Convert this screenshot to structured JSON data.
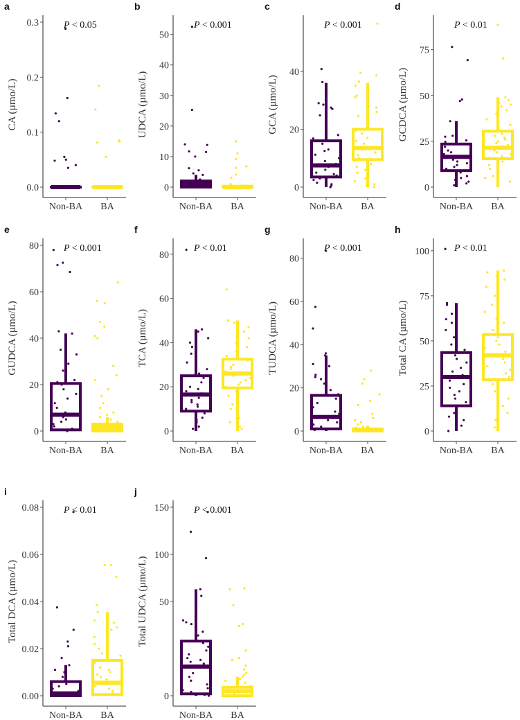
{
  "colors": {
    "Non-BA": "#440154",
    "BA": "#fde725",
    "axis": "#555555"
  },
  "chart_data": [
    {
      "type": "box",
      "panel": "a",
      "ylabel": "CA (µmo/L)",
      "pvalue": "< 0.05",
      "categories": [
        "Non-BA",
        "BA"
      ],
      "ylim": [
        0,
        0.3
      ],
      "yticks": [
        "0.0",
        "0.1",
        "0.2",
        "0.3"
      ],
      "ytick_values": [
        0,
        0.1,
        0.2,
        0.3
      ],
      "groups": [
        {
          "name": "Non-BA",
          "whisker_low": 0,
          "q1": 0,
          "median": 0,
          "q3": 0,
          "whisker_high": 0,
          "points": [
            0.288,
            0.162,
            0.134,
            0.12,
            0.055,
            0.05,
            0.048,
            0.04,
            0.035,
            0,
            0,
            0,
            0,
            0,
            0,
            0,
            0,
            0,
            0,
            0
          ]
        },
        {
          "name": "BA",
          "whisker_low": 0,
          "q1": 0,
          "median": 0,
          "q3": 0,
          "whisker_high": 0,
          "points": [
            0.184,
            0.141,
            0.085,
            0.083,
            0.081,
            0.055,
            0,
            0,
            0,
            0,
            0,
            0,
            0,
            0,
            0,
            0,
            0,
            0,
            0,
            0
          ]
        }
      ]
    },
    {
      "type": "box",
      "panel": "b",
      "ylabel": "UDCA (µmo/L)",
      "pvalue": "< 0.001",
      "categories": [
        "Non-BA",
        "BA"
      ],
      "ylim": [
        0,
        54
      ],
      "yticks": [
        "0",
        "10",
        "20",
        "30",
        "40",
        "50"
      ],
      "ytick_values": [
        0,
        10,
        20,
        30,
        40,
        50
      ],
      "groups": [
        {
          "name": "Non-BA",
          "whisker_low": 0,
          "q1": 0,
          "median": 1,
          "q3": 2,
          "whisker_high": 4,
          "points": [
            52.5,
            25.3,
            14,
            13.8,
            11.7,
            11.5,
            10,
            6.2,
            5.5,
            4.5,
            4,
            2.5,
            1.5,
            1,
            0.5,
            0,
            0,
            0,
            0,
            0,
            0,
            0
          ]
        },
        {
          "name": "BA",
          "whisker_low": 0,
          "q1": 0,
          "median": 0,
          "q3": 0.3,
          "whisker_high": 0.5,
          "points": [
            15,
            11,
            9.2,
            6.8,
            6.3,
            4.1,
            3,
            1,
            0.5,
            0,
            0,
            0,
            0,
            0,
            0,
            0,
            0,
            0,
            0,
            0
          ]
        }
      ]
    },
    {
      "type": "box",
      "panel": "c",
      "ylabel": "GCA (µmo/L)",
      "pvalue": "< 0.001",
      "categories": [
        "Non-BA",
        "BA"
      ],
      "ylim": [
        0,
        57
      ],
      "yticks": [
        "0",
        "20",
        "40"
      ],
      "ytick_values": [
        0,
        20,
        40
      ],
      "groups": [
        {
          "name": "Non-BA",
          "whisker_low": 0,
          "q1": 3.5,
          "median": 7.5,
          "q3": 16,
          "whisker_high": 36,
          "points": [
            40.8,
            36.3,
            29,
            28.5,
            27.5,
            27,
            24.8,
            18,
            16.8,
            15,
            13,
            12.5,
            11.2,
            10,
            9,
            8,
            7,
            6,
            5,
            4.5,
            4,
            3,
            2.5,
            1.5,
            1,
            0.5,
            0
          ]
        },
        {
          "name": "BA",
          "whisker_low": 0,
          "q1": 9.5,
          "median": 13.5,
          "q3": 20,
          "whisker_high": 36,
          "points": [
            56.5,
            39.5,
            38.6,
            36.5,
            35,
            31.6,
            31,
            28,
            27.5,
            26,
            24.5,
            21,
            19.5,
            18.5,
            17,
            16,
            15,
            14,
            13,
            12,
            11,
            10,
            9,
            8,
            7,
            6,
            5,
            4,
            3,
            2,
            1,
            0.5,
            0
          ]
        }
      ]
    },
    {
      "type": "box",
      "panel": "d",
      "ylabel": "GCDCA (µmo/L)",
      "pvalue": "< 0.01",
      "categories": [
        "Non-BA",
        "BA"
      ],
      "ylim": [
        0,
        90
      ],
      "yticks": [
        "0",
        "25",
        "50",
        "75"
      ],
      "ytick_values": [
        0,
        25,
        50,
        75
      ],
      "groups": [
        {
          "name": "Non-BA",
          "whisker_low": 0,
          "q1": 9,
          "median": 16.5,
          "q3": 23.5,
          "whisker_high": 36,
          "points": [
            76.5,
            69.3,
            47.8,
            47,
            36,
            28,
            27.5,
            25.5,
            24.7,
            22,
            20,
            19,
            18,
            17,
            16,
            15,
            14,
            13,
            12,
            11,
            10,
            9,
            8,
            7,
            6,
            5,
            4,
            3,
            2,
            1
          ]
        },
        {
          "name": "BA",
          "whisker_low": 0,
          "q1": 15.5,
          "median": 21.5,
          "q3": 30.5,
          "whisker_high": 49,
          "points": [
            88.5,
            70.3,
            49,
            47.5,
            46,
            45,
            44,
            42,
            40,
            37,
            34,
            31,
            29,
            28,
            27,
            26,
            25,
            24,
            23,
            22,
            21,
            20,
            19,
            18,
            17,
            16,
            14,
            12,
            10,
            8,
            6,
            5,
            3,
            1
          ]
        }
      ]
    },
    {
      "type": "box",
      "panel": "e",
      "ylabel": "GUDCA (µmo/L)",
      "pvalue": "< 0.001",
      "categories": [
        "Non-BA",
        "BA"
      ],
      "ylim": [
        0,
        80
      ],
      "yticks": [
        "0",
        "20",
        "40",
        "60",
        "80"
      ],
      "ytick_values": [
        0,
        20,
        40,
        60,
        80
      ],
      "groups": [
        {
          "name": "Non-BA",
          "whisker_low": 0,
          "q1": 0.5,
          "median": 7,
          "q3": 20.5,
          "whisker_high": 42,
          "points": [
            78,
            72.5,
            71.5,
            68.5,
            43,
            42,
            35,
            33,
            29,
            26,
            22,
            21,
            20,
            18,
            16,
            14,
            12,
            10,
            8,
            7,
            6,
            5,
            4,
            3,
            2,
            1,
            0.5,
            0
          ]
        },
        {
          "name": "BA",
          "whisker_low": 0,
          "q1": 0,
          "median": 1.5,
          "q3": 3,
          "whisker_high": 6,
          "points": [
            64,
            56,
            55,
            47,
            45,
            41,
            40,
            28,
            24,
            22,
            18,
            15,
            12,
            10,
            8,
            7,
            6,
            5,
            4,
            3,
            2,
            1,
            0.5,
            0,
            0,
            0
          ]
        }
      ]
    },
    {
      "type": "box",
      "panel": "f",
      "ylabel": "TCA (µmo/L)",
      "pvalue": "< 0.01",
      "categories": [
        "Non-BA",
        "BA"
      ],
      "ylim": [
        0,
        84
      ],
      "yticks": [
        "0",
        "20",
        "40",
        "60",
        "80"
      ],
      "ytick_values": [
        0,
        20,
        40,
        60,
        80
      ],
      "groups": [
        {
          "name": "Non-BA",
          "whisker_low": 0,
          "q1": 9,
          "median": 16.5,
          "q3": 25,
          "whisker_high": 46,
          "points": [
            82,
            46,
            45,
            42,
            40,
            38,
            35,
            31,
            28,
            26,
            24,
            22,
            20,
            19,
            18,
            17,
            16,
            15,
            14,
            13,
            12,
            11,
            10,
            9,
            8,
            6,
            5,
            4,
            2,
            1
          ]
        },
        {
          "name": "BA",
          "whisker_low": 0,
          "q1": 19.5,
          "median": 26,
          "q3": 32.5,
          "whisker_high": 50,
          "points": [
            64,
            50,
            49,
            47,
            45,
            42,
            40,
            38,
            36,
            34,
            32,
            30,
            29,
            28,
            27,
            26,
            25,
            24,
            23,
            22,
            21,
            20,
            18,
            16,
            14,
            12,
            10,
            8,
            6,
            4,
            2,
            1
          ]
        }
      ]
    },
    {
      "type": "box",
      "panel": "g",
      "ylabel": "TUDCA (µmo/L)",
      "pvalue": "< 0.001",
      "categories": [
        "Non-BA",
        "BA"
      ],
      "ylim": [
        0,
        86
      ],
      "yticks": [
        "0",
        "20",
        "40",
        "60",
        "80"
      ],
      "ytick_values": [
        0,
        20,
        40,
        60,
        80
      ],
      "groups": [
        {
          "name": "Non-BA",
          "whisker_low": 0,
          "q1": 1,
          "median": 6.5,
          "q3": 16.5,
          "whisker_high": 35,
          "points": [
            83.5,
            57.5,
            47.5,
            36,
            35,
            31,
            30,
            26,
            25,
            24,
            22,
            19,
            17,
            15,
            13,
            11,
            9,
            8,
            7,
            6,
            5,
            4,
            3,
            2,
            1,
            0.5
          ]
        },
        {
          "name": "BA",
          "whisker_low": 0,
          "q1": 0,
          "median": 0.5,
          "q3": 1,
          "whisker_high": 2.5,
          "points": [
            28,
            24,
            22,
            17,
            14,
            12,
            8,
            6,
            5,
            4,
            3,
            2,
            1.5,
            1,
            0.5,
            0,
            0,
            0,
            0,
            0
          ]
        }
      ]
    },
    {
      "type": "box",
      "panel": "h",
      "ylabel": "Total  CA (µmo/L)",
      "pvalue": "< 0.01",
      "categories": [
        "Non-BA",
        "BA"
      ],
      "ylim": [
        0,
        103
      ],
      "yticks": [
        "0",
        "25",
        "50",
        "75",
        "100"
      ],
      "ytick_values": [
        0,
        25,
        50,
        75,
        100
      ],
      "groups": [
        {
          "name": "Non-BA",
          "whisker_low": 0,
          "q1": 14,
          "median": 30,
          "q3": 43.5,
          "whisker_high": 71,
          "points": [
            101,
            71,
            70,
            65,
            62,
            60,
            56,
            52,
            48,
            45,
            42,
            40,
            38,
            35,
            33,
            31,
            30,
            28,
            26,
            24,
            22,
            20,
            18,
            16,
            14,
            12,
            10,
            8,
            6,
            3,
            0
          ]
        },
        {
          "name": "BA",
          "whisker_low": 0,
          "q1": 28.5,
          "median": 42,
          "q3": 53.5,
          "whisker_high": 89,
          "points": [
            89,
            88,
            86,
            84,
            80,
            75,
            70,
            66,
            62,
            60,
            56,
            54,
            52,
            50,
            48,
            46,
            44,
            42,
            40,
            38,
            36,
            34,
            32,
            30,
            28,
            26,
            22,
            18,
            14,
            10,
            6,
            2
          ]
        }
      ]
    },
    {
      "type": "box",
      "panel": "i",
      "ylabel": "Total  DCA (µmo/L)",
      "pvalue": "< 0.01",
      "categories": [
        "Non-BA",
        "BA"
      ],
      "ylim": [
        0,
        0.08
      ],
      "yticks": [
        "0.00",
        "0.02",
        "0.04",
        "0.06",
        "0.08"
      ],
      "ytick_values": [
        0,
        0.02,
        0.04,
        0.06,
        0.08
      ],
      "groups": [
        {
          "name": "Non-BA",
          "whisker_low": 0,
          "q1": 0,
          "median": 0.001,
          "q3": 0.006,
          "whisker_high": 0.013,
          "points": [
            0.078,
            0.0375,
            0.028,
            0.023,
            0.021,
            0.016,
            0.013,
            0.011,
            0.01,
            0.008,
            0.006,
            0.005,
            0.004,
            0.003,
            0.002,
            0.001,
            0,
            0,
            0,
            0,
            0
          ]
        },
        {
          "name": "BA",
          "whisker_low": 0,
          "q1": 0.0005,
          "median": 0.0055,
          "q3": 0.015,
          "whisker_high": 0.0355,
          "points": [
            0.0555,
            0.0555,
            0.0505,
            0.0385,
            0.0355,
            0.032,
            0.031,
            0.029,
            0.028,
            0.025,
            0.022,
            0.02,
            0.018,
            0.017,
            0.015,
            0.014,
            0.012,
            0.011,
            0.01,
            0.009,
            0.008,
            0.007,
            0.006,
            0.005,
            0.004,
            0.003,
            0.002,
            0.001
          ]
        }
      ]
    },
    {
      "type": "box",
      "panel": "j",
      "ylabel": "Total  UDCA (µmo/L)",
      "pvalue": "< 0.001",
      "categories": [
        "Non-BA",
        "BA"
      ],
      "ylim": [
        0,
        150
      ],
      "yscale": "piecewise (0–50 expanded)",
      "yticks": [
        "0",
        "50",
        "100",
        "150"
      ],
      "ytick_values": [
        0,
        50,
        100,
        150
      ],
      "groups": [
        {
          "name": "Non-BA",
          "whisker_low": 0,
          "q1": 1,
          "median": 15.5,
          "q3": 29,
          "whisker_high": 63,
          "points": [
            145,
            124,
            96,
            63,
            56,
            40,
            39,
            38,
            37,
            34,
            32,
            28,
            26,
            24,
            22,
            20,
            19,
            18,
            17,
            15,
            12,
            10,
            8,
            6,
            4,
            3,
            2,
            1,
            0.5,
            0
          ]
        },
        {
          "name": "BA",
          "whisker_low": 0,
          "q1": 0,
          "median": 2.5,
          "q3": 4.5,
          "whisker_high": 10,
          "points": [
            64,
            63,
            48,
            38,
            37,
            24,
            20,
            19,
            16,
            14,
            12,
            11,
            10,
            9,
            8,
            7,
            5,
            4,
            3,
            2,
            1,
            0.5,
            0,
            0,
            0
          ]
        }
      ]
    }
  ]
}
